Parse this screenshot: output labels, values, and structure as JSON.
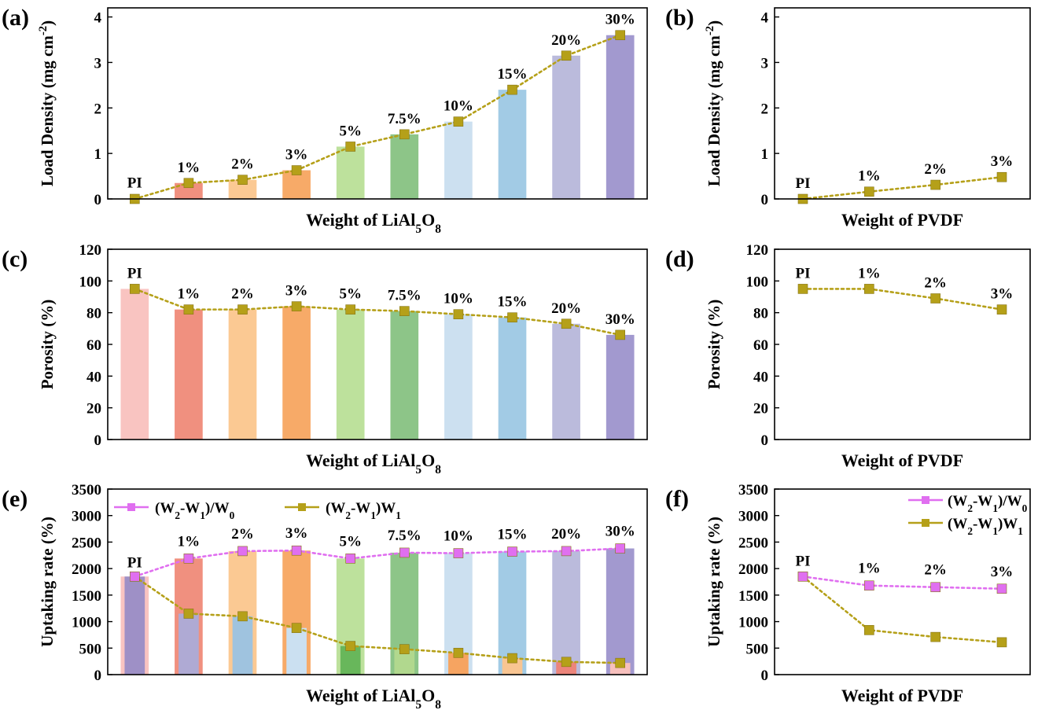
{
  "colors": {
    "bars": [
      "#f9c4c1",
      "#f0907f",
      "#fbc993",
      "#f7aa68",
      "#bde19c",
      "#8dc588",
      "#cce0f0",
      "#a2cbe5",
      "#bbbbdc",
      "#a299cf"
    ],
    "e_inner": [
      "#9e90c6",
      "#afaad4",
      "#9fc3df",
      "#cbe0f1",
      "#68b75b",
      "#b1d88e",
      "#f6a461",
      "#f8c592",
      "#ec857b",
      "#f7c0bd"
    ],
    "olive": "#b5a019",
    "olive_dark": "#867413",
    "magenta": "#e06ff0"
  },
  "chart_data": [
    {
      "id": "a",
      "panel_label": "(a)",
      "type": "bar",
      "categories": [
        "PI",
        "1%",
        "2%",
        "3%",
        "5%",
        "7.5%",
        "10%",
        "15%",
        "20%",
        "30%"
      ],
      "values": [
        0.01,
        0.35,
        0.42,
        0.63,
        1.15,
        1.42,
        1.7,
        2.4,
        3.15,
        3.6
      ],
      "line": [
        0.0,
        0.35,
        0.42,
        0.63,
        1.15,
        1.42,
        1.7,
        2.4,
        3.15,
        3.6
      ],
      "ylabel": "Load Density (mg cm-2)",
      "xlabel": "Weight of LiAl5O8",
      "ylim": [
        0,
        4.2
      ],
      "yticks": [
        "0",
        "1",
        "2",
        "3",
        "4"
      ]
    },
    {
      "id": "b",
      "panel_label": "(b)",
      "type": "line",
      "categories": [
        "PI",
        "1%",
        "2%",
        "3%"
      ],
      "line": [
        0.0,
        0.16,
        0.31,
        0.48
      ],
      "ylabel": "Load Density (mg cm-2)",
      "xlabel": "Weight of PVDF",
      "ylim": [
        0,
        4.2
      ],
      "yticks": [
        "0",
        "1",
        "2",
        "3",
        "4"
      ]
    },
    {
      "id": "c",
      "panel_label": "(c)",
      "type": "bar",
      "categories": [
        "PI",
        "1%",
        "2%",
        "3%",
        "5%",
        "7.5%",
        "10%",
        "15%",
        "20%",
        "30%"
      ],
      "values": [
        95,
        82,
        82,
        84,
        82,
        81,
        79,
        77,
        73,
        66
      ],
      "line": [
        95,
        82,
        82,
        84,
        82,
        81,
        79,
        77,
        73,
        66
      ],
      "ylabel": "Porosity (%)",
      "xlabel": "Weight of LiAl5O8",
      "ylim": [
        0,
        120
      ],
      "yticks": [
        "0",
        "20",
        "40",
        "60",
        "80",
        "100",
        "120"
      ]
    },
    {
      "id": "d",
      "panel_label": "(d)",
      "type": "line",
      "categories": [
        "PI",
        "1%",
        "2%",
        "3%"
      ],
      "line": [
        95,
        95,
        89,
        82
      ],
      "ylabel": "Porosity (%)",
      "xlabel": "Weight of PVDF",
      "ylim": [
        0,
        120
      ],
      "yticks": [
        "0",
        "20",
        "40",
        "60",
        "80",
        "100",
        "120"
      ]
    },
    {
      "id": "e",
      "panel_label": "(e)",
      "type": "bar",
      "categories": [
        "PI",
        "1%",
        "2%",
        "3%",
        "5%",
        "7.5%",
        "10%",
        "15%",
        "20%",
        "30%"
      ],
      "values": [
        1850,
        2190,
        2330,
        2340,
        2190,
        2300,
        2290,
        2320,
        2330,
        2380
      ],
      "inner_values": [
        1850,
        1150,
        1100,
        880,
        540,
        480,
        410,
        310,
        240,
        220
      ],
      "series": [
        {
          "name": "(W2-W1)/W0",
          "values": [
            1850,
            2190,
            2330,
            2340,
            2190,
            2300,
            2290,
            2320,
            2330,
            2380
          ]
        },
        {
          "name": "(W2-W1)W1",
          "values": [
            1850,
            1150,
            1100,
            880,
            540,
            480,
            410,
            310,
            240,
            220
          ]
        }
      ],
      "ylabel": "Uptaking rate (%)",
      "xlabel": "Weight of LiAl5O8",
      "ylim": [
        0,
        3500
      ],
      "yticks": [
        "0",
        "500",
        "1000",
        "1500",
        "2000",
        "2500",
        "3000",
        "3500"
      ]
    },
    {
      "id": "f",
      "panel_label": "(f)",
      "type": "line",
      "categories": [
        "PI",
        "1%",
        "2%",
        "3%"
      ],
      "series": [
        {
          "name": "(W2-W1)/W0",
          "values": [
            1850,
            1680,
            1650,
            1620
          ]
        },
        {
          "name": "(W2-W1)W1",
          "values": [
            1850,
            840,
            710,
            610
          ]
        }
      ],
      "ylabel": "Uptaking rate (%)",
      "xlabel": "Weight of PVDF",
      "ylim": [
        0,
        3500
      ],
      "yticks": [
        "0",
        "500",
        "1000",
        "1500",
        "2000",
        "2500",
        "3000",
        "3500"
      ]
    }
  ]
}
